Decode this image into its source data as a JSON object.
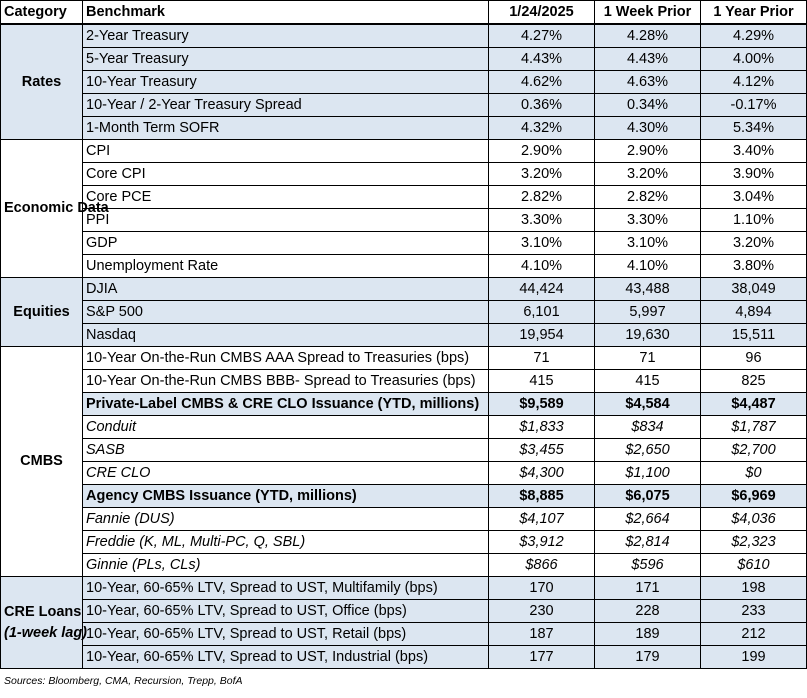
{
  "headers": [
    "Category",
    "Benchmark",
    "1/24/2025",
    "1 Week Prior",
    "1 Year Prior"
  ],
  "groups": [
    {
      "category": "Rates",
      "rows": [
        {
          "benchmark": "2-Year Treasury",
          "v1": "4.27%",
          "v2": "4.28%",
          "v3": "4.29%"
        },
        {
          "benchmark": "5-Year Treasury",
          "v1": "4.43%",
          "v2": "4.43%",
          "v3": "4.00%"
        },
        {
          "benchmark": "10-Year Treasury",
          "v1": "4.62%",
          "v2": "4.63%",
          "v3": "4.12%"
        },
        {
          "benchmark": "10-Year / 2-Year Treasury Spread",
          "v1": "0.36%",
          "v2": "0.34%",
          "v3": "-0.17%"
        },
        {
          "benchmark": "1-Month Term SOFR",
          "v1": "4.32%",
          "v2": "4.30%",
          "v3": "5.34%"
        }
      ]
    },
    {
      "category": "Economic Data",
      "rows": [
        {
          "benchmark": "CPI",
          "v1": "2.90%",
          "v2": "2.90%",
          "v3": "3.40%"
        },
        {
          "benchmark": "Core CPI",
          "v1": "3.20%",
          "v2": "3.20%",
          "v3": "3.90%"
        },
        {
          "benchmark": "Core PCE",
          "v1": "2.82%",
          "v2": "2.82%",
          "v3": "3.04%"
        },
        {
          "benchmark": "PPI",
          "v1": "3.30%",
          "v2": "3.30%",
          "v3": "1.10%"
        },
        {
          "benchmark": "GDP",
          "v1": "3.10%",
          "v2": "3.10%",
          "v3": "3.20%"
        },
        {
          "benchmark": "Unemployment Rate",
          "v1": "4.10%",
          "v2": "4.10%",
          "v3": "3.80%"
        }
      ]
    },
    {
      "category": "Equities",
      "rows": [
        {
          "benchmark": "DJIA",
          "v1": "44,424",
          "v2": "43,488",
          "v3": "38,049"
        },
        {
          "benchmark": "S&P 500",
          "v1": "6,101",
          "v2": "5,997",
          "v3": "4,894"
        },
        {
          "benchmark": "Nasdaq",
          "v1": "19,954",
          "v2": "19,630",
          "v3": "15,511"
        }
      ]
    },
    {
      "category": "CMBS",
      "rows": [
        {
          "benchmark": "10-Year On-the-Run CMBS AAA Spread to Treasuries (bps)",
          "v1": "71",
          "v2": "71",
          "v3": "96"
        },
        {
          "benchmark": "10-Year On-the-Run CMBS BBB- Spread to Treasuries (bps)",
          "v1": "415",
          "v2": "415",
          "v3": "825"
        },
        {
          "benchmark": "Private-Label CMBS & CRE CLO Issuance (YTD, millions)",
          "v1": "$9,589",
          "v2": "$4,584",
          "v3": "$4,487"
        },
        {
          "benchmark": "Conduit",
          "v1": "$1,833",
          "v2": "$834",
          "v3": "$1,787"
        },
        {
          "benchmark": "SASB",
          "v1": "$3,455",
          "v2": "$2,650",
          "v3": "$2,700"
        },
        {
          "benchmark": "CRE CLO",
          "v1": "$4,300",
          "v2": "$1,100",
          "v3": "$0"
        },
        {
          "benchmark": "Agency CMBS Issuance (YTD, millions)",
          "v1": "$8,885",
          "v2": "$6,075",
          "v3": "$6,969"
        },
        {
          "benchmark": "Fannie (DUS)",
          "v1": "$4,107",
          "v2": "$2,664",
          "v3": "$4,036"
        },
        {
          "benchmark": "Freddie (K, ML, Multi-PC, Q, SBL)",
          "v1": "$3,912",
          "v2": "$2,814",
          "v3": "$2,323"
        },
        {
          "benchmark": "Ginnie (PLs, CLs)",
          "v1": "$866",
          "v2": "$596",
          "v3": "$610"
        }
      ]
    },
    {
      "category": "CRE Loans",
      "category_note": "(1-week lag)",
      "rows": [
        {
          "benchmark": "10-Year, 60-65% LTV, Spread to UST, Multifamily (bps)",
          "v1": "170",
          "v2": "171",
          "v3": "198"
        },
        {
          "benchmark": "10-Year, 60-65% LTV, Spread to UST, Office (bps)",
          "v1": "230",
          "v2": "228",
          "v3": "233"
        },
        {
          "benchmark": "10-Year, 60-65% LTV, Spread to UST, Retail (bps)",
          "v1": "187",
          "v2": "189",
          "v3": "212"
        },
        {
          "benchmark": "10-Year, 60-65% LTV, Spread to UST, Industrial (bps)",
          "v1": "177",
          "v2": "179",
          "v3": "199"
        }
      ]
    }
  ],
  "footer": "Sources: Bloomberg, CMA, Recursion, Trepp, BofA"
}
